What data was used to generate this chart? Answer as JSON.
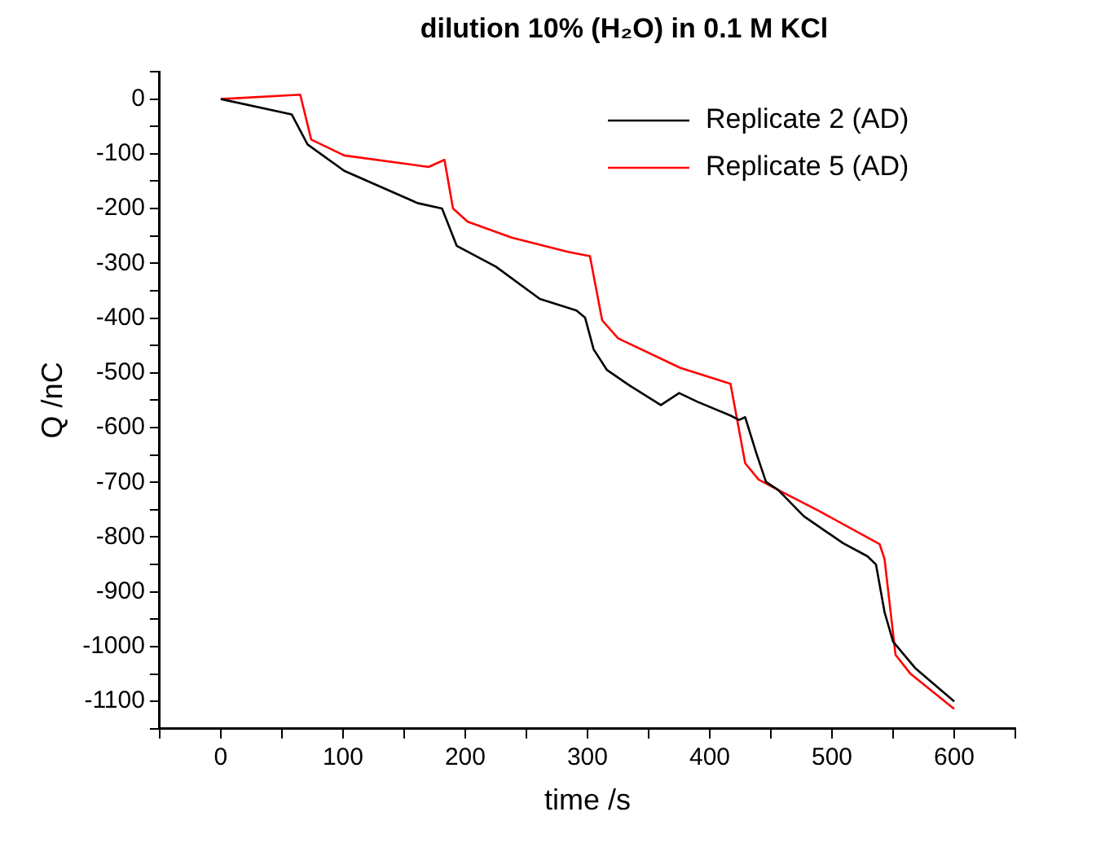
{
  "chart_data": {
    "type": "line",
    "title": "dilution 10% (H₂O) in 0.1 M KCl",
    "xlabel": "time /s",
    "ylabel": "Q /nC",
    "xlim": [
      -50,
      650
    ],
    "xticks": [
      {
        "value": -50,
        "label": null
      },
      0,
      {
        "value": 50,
        "label": null
      },
      100,
      {
        "value": 150,
        "label": null
      },
      200,
      {
        "value": 250,
        "label": null
      },
      300,
      {
        "value": 350,
        "label": null
      },
      400,
      {
        "value": 450,
        "label": null
      },
      500,
      {
        "value": 550,
        "label": null
      },
      600,
      {
        "value": 650,
        "label": null
      }
    ],
    "ylim": [
      -1150,
      50
    ],
    "yticks": [
      {
        "value": 50,
        "label": null
      },
      0,
      {
        "value": -50,
        "label": null
      },
      -100,
      {
        "value": -150,
        "label": null
      },
      -200,
      {
        "value": -250,
        "label": null
      },
      -300,
      {
        "value": -350,
        "label": null
      },
      -400,
      {
        "value": -450,
        "label": null
      },
      -500,
      {
        "value": -550,
        "label": null
      },
      -600,
      {
        "value": -650,
        "label": null
      },
      -700,
      {
        "value": -750,
        "label": null
      },
      -800,
      {
        "value": -850,
        "label": null
      },
      -900,
      {
        "value": -950,
        "label": null
      },
      -1000,
      {
        "value": -1050,
        "label": null
      },
      -1100,
      {
        "value": -1150,
        "label": null
      }
    ],
    "grid": false,
    "legend": "top right",
    "marker": "none",
    "line_style": "solid",
    "series": [
      {
        "name": "Replicate 2 (AD)",
        "color": "#000000",
        "x": [
          0,
          58,
          71,
          101,
          161,
          181,
          193,
          225,
          261,
          291,
          298,
          305,
          316,
          335,
          360,
          375,
          390,
          417,
          424,
          429,
          438,
          446,
          456,
          477,
          509,
          529,
          536,
          543,
          550,
          568,
          600
        ],
        "values": [
          0,
          -28,
          -83,
          -131,
          -190,
          -200,
          -268,
          -306,
          -365,
          -386,
          -399,
          -457,
          -495,
          -524,
          -559,
          -537,
          -553,
          -578,
          -586,
          -581,
          -646,
          -699,
          -714,
          -762,
          -811,
          -835,
          -850,
          -937,
          -991,
          -1039,
          -1100
        ]
      },
      {
        "name": "Replicate 5 (AD)",
        "color": "#ff0000",
        "x": [
          0,
          65,
          74,
          101,
          170,
          183,
          190,
          202,
          238,
          284,
          302,
          312,
          325,
          376,
          417,
          429,
          440,
          456,
          490,
          539,
          543,
          552,
          564,
          600
        ],
        "values": [
          0,
          8,
          -74,
          -103,
          -124,
          -111,
          -200,
          -224,
          -253,
          -279,
          -287,
          -404,
          -437,
          -491,
          -520,
          -665,
          -695,
          -714,
          -753,
          -813,
          -840,
          -1015,
          -1049,
          -1114
        ]
      }
    ]
  }
}
